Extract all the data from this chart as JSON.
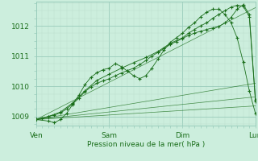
{
  "title": "",
  "xlabel": "Pression niveau de la mer( hPa )",
  "ylabel": "",
  "xlim": [
    0,
    72
  ],
  "ylim": [
    1008.7,
    1012.8
  ],
  "yticks": [
    1009,
    1010,
    1011,
    1012
  ],
  "xtick_positions": [
    0,
    24,
    48,
    72
  ],
  "xtick_labels": [
    "Ven",
    "Sam",
    "Dim",
    "Lun"
  ],
  "bg_color": "#cceedd",
  "grid_major_color": "#99ccbb",
  "grid_minor_color": "#bbddcc",
  "line_color": "#1a6e1a",
  "marker": "+",
  "line_width": 0.8,
  "straight_lines": [
    {
      "x": [
        0,
        72
      ],
      "y": [
        1008.9,
        1009.35
      ]
    },
    {
      "x": [
        0,
        72
      ],
      "y": [
        1008.9,
        1009.65
      ]
    },
    {
      "x": [
        0,
        72
      ],
      "y": [
        1008.9,
        1010.1
      ]
    },
    {
      "x": [
        0,
        72
      ],
      "y": [
        1008.9,
        1012.6
      ]
    }
  ],
  "series": [
    {
      "x": [
        0,
        4,
        6,
        8,
        10,
        12,
        14,
        16,
        18,
        20,
        22,
        24,
        26,
        28,
        30,
        32,
        34,
        36,
        38,
        40,
        42,
        44,
        46,
        48,
        50,
        52,
        54,
        56,
        58,
        60,
        62,
        64,
        66,
        68,
        70,
        72
      ],
      "y": [
        1008.9,
        1008.85,
        1008.8,
        1008.9,
        1009.1,
        1009.4,
        1009.7,
        1010.05,
        1010.3,
        1010.45,
        1010.55,
        1010.6,
        1010.75,
        1010.65,
        1010.5,
        1010.35,
        1010.25,
        1010.35,
        1010.6,
        1010.9,
        1011.2,
        1011.45,
        1011.6,
        1011.75,
        1011.95,
        1012.1,
        1012.3,
        1012.45,
        1012.55,
        1012.55,
        1012.38,
        1012.1,
        1011.6,
        1010.8,
        1009.85,
        1009.1
      ],
      "with_marker": true
    },
    {
      "x": [
        0,
        4,
        8,
        12,
        16,
        20,
        24,
        28,
        32,
        36,
        40,
        44,
        48,
        50,
        52,
        54,
        56,
        58,
        60,
        62,
        64,
        66,
        68,
        70,
        72
      ],
      "y": [
        1008.9,
        1009.0,
        1009.15,
        1009.45,
        1009.85,
        1010.2,
        1010.4,
        1010.6,
        1010.78,
        1010.95,
        1011.15,
        1011.42,
        1011.6,
        1011.75,
        1011.88,
        1012.0,
        1012.1,
        1012.25,
        1012.38,
        1012.5,
        1012.62,
        1012.68,
        1012.65,
        1012.3,
        1009.5
      ],
      "with_marker": true
    },
    {
      "x": [
        0,
        2,
        4,
        6,
        8,
        10,
        12,
        14,
        16,
        18,
        20,
        22,
        24,
        26,
        28,
        30,
        32,
        34,
        36,
        38,
        40,
        42,
        44,
        46,
        48,
        50,
        52,
        54,
        56,
        58,
        60,
        62,
        64,
        66,
        68,
        70,
        72
      ],
      "y": [
        1008.9,
        1008.95,
        1009.0,
        1009.05,
        1009.12,
        1009.25,
        1009.42,
        1009.6,
        1009.82,
        1009.98,
        1010.1,
        1010.18,
        1010.25,
        1010.35,
        1010.44,
        1010.52,
        1010.6,
        1010.72,
        1010.85,
        1011.0,
        1011.12,
        1011.25,
        1011.38,
        1011.48,
        1011.58,
        1011.68,
        1011.76,
        1011.82,
        1011.88,
        1011.93,
        1011.98,
        1012.1,
        1012.28,
        1012.55,
        1012.7,
        1012.38,
        1009.55
      ],
      "with_marker": true
    }
  ]
}
